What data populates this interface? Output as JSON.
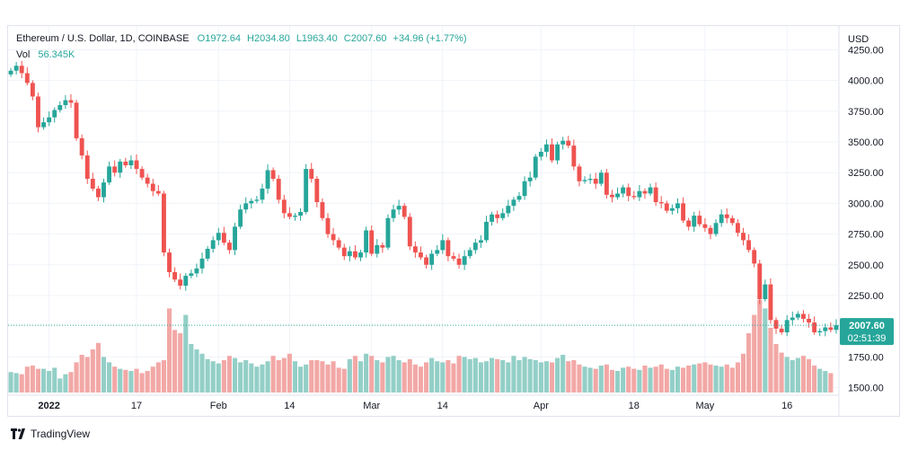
{
  "legend": {
    "symbol": "Ethereum / U.S. Dollar, 1D, COINBASE",
    "open": "O1972.64",
    "high": "H2034.80",
    "low": "L1963.40",
    "close": "C2007.60",
    "change": "+34.96 (+1.77%)",
    "vol_label": "Vol",
    "vol_value": "56.345K"
  },
  "axis": {
    "currency": "USD",
    "price_badge": "2007.60",
    "countdown": "02:51:39"
  },
  "brand": {
    "name": "TradingView",
    "icon": "tradingview-logo"
  },
  "colors": {
    "up": "#26a69a",
    "down": "#ef5350",
    "vol_up": "#93cfc7",
    "vol_down": "#f2a8a6",
    "grid": "#f0f3fa"
  },
  "chart_data": {
    "type": "candlestick",
    "title": "Ethereum / U.S. Dollar, 1D, COINBASE",
    "y_ticks": [
      4250,
      4000,
      3750,
      3500,
      3250,
      3000,
      2750,
      2500,
      2250,
      1750,
      1500
    ],
    "y_tick_labels": [
      "4250.00",
      "4000.00",
      "3750.00",
      "3500.00",
      "3250.00",
      "3000.00",
      "2750.00",
      "2500.00",
      "2250.00",
      "1750.00",
      "1500.00"
    ],
    "ylim": [
      1460,
      4290
    ],
    "x_tick_labels": [
      {
        "i": 7,
        "label": "2022"
      },
      {
        "i": 23,
        "label": "17"
      },
      {
        "i": 38,
        "label": "Feb"
      },
      {
        "i": 51,
        "label": "14"
      },
      {
        "i": 66,
        "label": "Mar"
      },
      {
        "i": 79,
        "label": "14"
      },
      {
        "i": 97,
        "label": "Apr"
      },
      {
        "i": 114,
        "label": "18"
      },
      {
        "i": 127,
        "label": "May"
      },
      {
        "i": 142,
        "label": "16"
      }
    ],
    "close_series": [
      4080,
      4120,
      4060,
      3980,
      3870,
      3620,
      3660,
      3700,
      3760,
      3800,
      3840,
      3820,
      3530,
      3390,
      3200,
      3120,
      3050,
      3170,
      3300,
      3250,
      3340,
      3310,
      3350,
      3280,
      3210,
      3160,
      3100,
      3080,
      2600,
      2440,
      2380,
      2330,
      2410,
      2430,
      2470,
      2550,
      2630,
      2700,
      2760,
      2680,
      2620,
      2810,
      2950,
      3000,
      3020,
      3030,
      3120,
      3270,
      3200,
      3030,
      2920,
      2890,
      2900,
      2930,
      3280,
      3200,
      3010,
      2880,
      2750,
      2700,
      2640,
      2570,
      2610,
      2560,
      2600,
      2780,
      2590,
      2660,
      2640,
      2880,
      2950,
      2980,
      2890,
      2650,
      2600,
      2560,
      2500,
      2590,
      2620,
      2700,
      2570,
      2550,
      2500,
      2570,
      2620,
      2680,
      2700,
      2850,
      2910,
      2880,
      2920,
      2980,
      3030,
      3060,
      3180,
      3210,
      3380,
      3420,
      3480,
      3350,
      3480,
      3510,
      3470,
      3300,
      3180,
      3190,
      3200,
      3160,
      3250,
      3070,
      3050,
      3080,
      3130,
      3060,
      3050,
      3100,
      3080,
      3130,
      3010,
      3000,
      2940,
      2960,
      3000,
      2860,
      2810,
      2900,
      2830,
      2800,
      2750,
      2840,
      2910,
      2880,
      2840,
      2760,
      2700,
      2620,
      2510,
      2220,
      2340,
      2050,
      1980,
      1950,
      2050,
      2070,
      2100,
      2060,
      2030,
      1950,
      1960,
      1990,
      1970,
      2007.6
    ],
    "volume_series": [
      0.19,
      0.18,
      0.17,
      0.24,
      0.25,
      0.22,
      0.22,
      0.2,
      0.23,
      0.13,
      0.17,
      0.19,
      0.28,
      0.35,
      0.33,
      0.4,
      0.46,
      0.33,
      0.28,
      0.24,
      0.22,
      0.21,
      0.2,
      0.22,
      0.18,
      0.2,
      0.24,
      0.28,
      0.3,
      0.78,
      0.58,
      0.55,
      0.72,
      0.45,
      0.4,
      0.36,
      0.31,
      0.29,
      0.27,
      0.3,
      0.34,
      0.32,
      0.28,
      0.3,
      0.27,
      0.24,
      0.26,
      0.29,
      0.34,
      0.3,
      0.32,
      0.36,
      0.29,
      0.24,
      0.26,
      0.3,
      0.3,
      0.29,
      0.26,
      0.29,
      0.23,
      0.22,
      0.31,
      0.34,
      0.29,
      0.36,
      0.34,
      0.3,
      0.28,
      0.33,
      0.34,
      0.3,
      0.28,
      0.31,
      0.26,
      0.24,
      0.28,
      0.32,
      0.29,
      0.28,
      0.3,
      0.27,
      0.34,
      0.33,
      0.31,
      0.32,
      0.28,
      0.29,
      0.32,
      0.31,
      0.3,
      0.28,
      0.34,
      0.3,
      0.33,
      0.31,
      0.3,
      0.28,
      0.29,
      0.28,
      0.32,
      0.35,
      0.29,
      0.3,
      0.26,
      0.24,
      0.23,
      0.22,
      0.25,
      0.26,
      0.21,
      0.2,
      0.23,
      0.24,
      0.22,
      0.21,
      0.25,
      0.23,
      0.24,
      0.26,
      0.22,
      0.21,
      0.24,
      0.23,
      0.25,
      0.26,
      0.27,
      0.28,
      0.26,
      0.25,
      0.24,
      0.26,
      0.23,
      0.28,
      0.36,
      0.55,
      0.72,
      0.86,
      0.78,
      0.6,
      0.45,
      0.37,
      0.33,
      0.3,
      0.32,
      0.34,
      0.31,
      0.25,
      0.22,
      0.2,
      0.18
    ]
  }
}
